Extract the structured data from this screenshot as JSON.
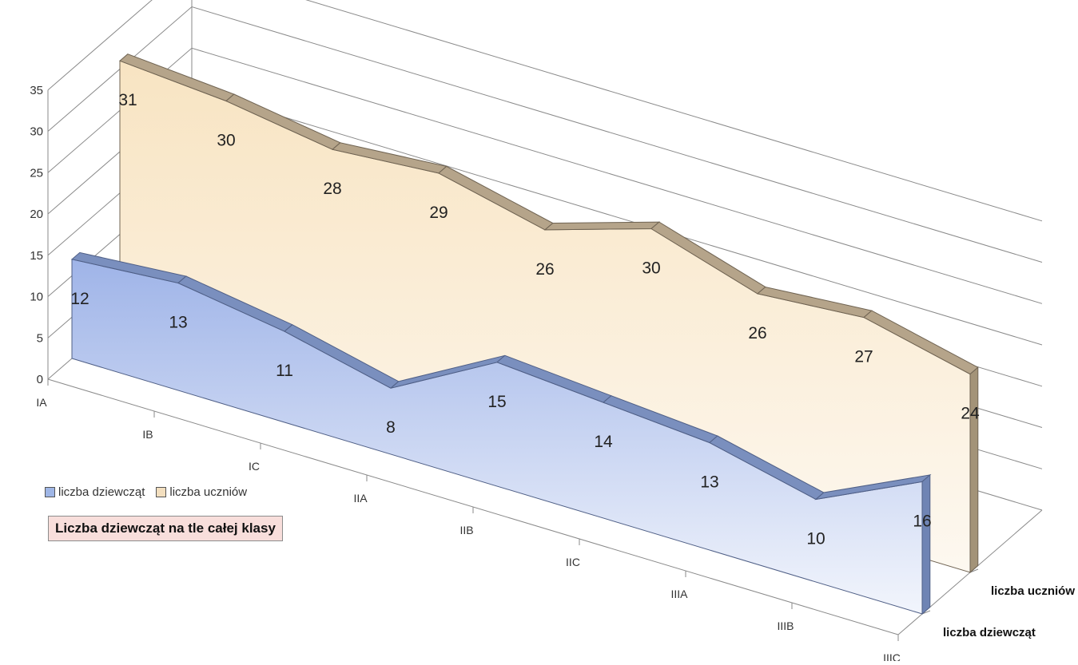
{
  "chart_data": {
    "type": "area",
    "view": "3d",
    "title": "Liczba dziewcząt na tle całej klasy",
    "categories": [
      "IA",
      "IB",
      "IC",
      "IIA",
      "IIB",
      "IIC",
      "IIIA",
      "IIIB",
      "IIIC"
    ],
    "series": [
      {
        "name": "liczba dziewcząt",
        "values": [
          12,
          13,
          11,
          8,
          15,
          14,
          13,
          10,
          16
        ],
        "color": "#9fb6e6"
      },
      {
        "name": "liczba uczniów",
        "values": [
          31,
          30,
          28,
          29,
          26,
          30,
          26,
          27,
          24
        ],
        "color": "#f3dfbf"
      }
    ],
    "y_ticks": [
      "0",
      "5",
      "10",
      "15",
      "20",
      "25",
      "30",
      "35"
    ],
    "ylim": [
      0,
      35
    ],
    "grid": true,
    "data_labels": true,
    "legend": "bottom-left"
  }
}
